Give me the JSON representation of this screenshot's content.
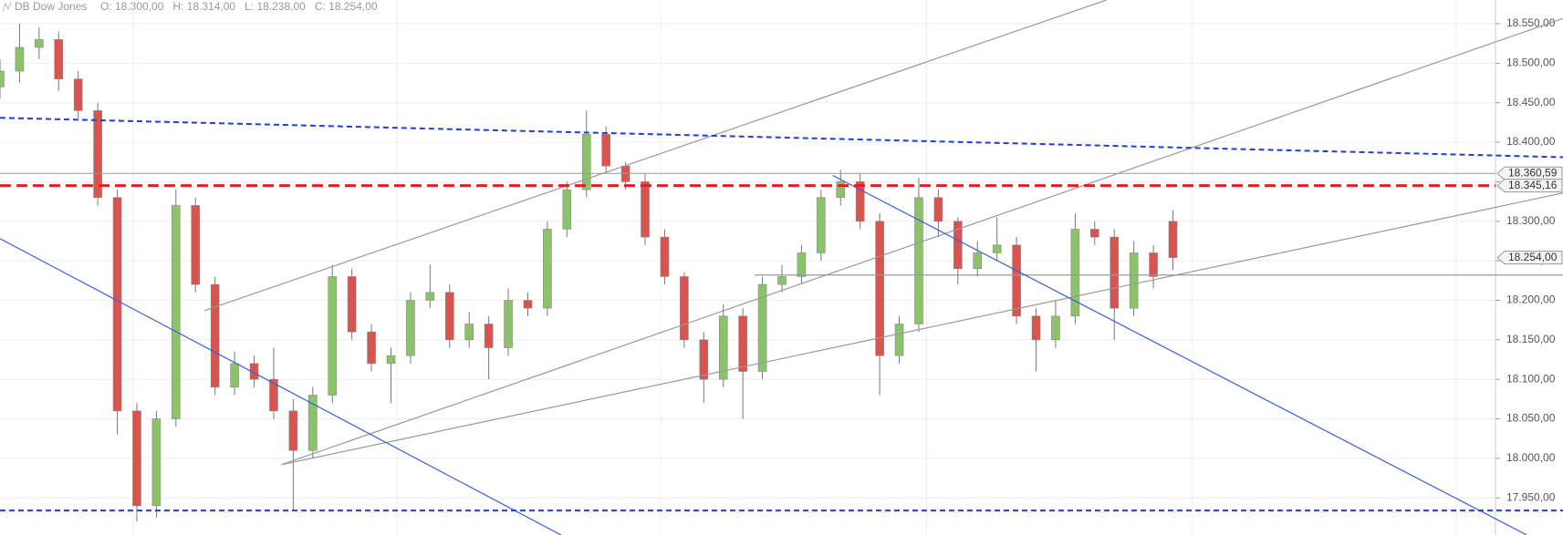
{
  "chart_data": {
    "type": "candlestick",
    "title": "DB Dow Jones",
    "ohlc_labels": [
      "O: 18.300,00",
      "H: 18.314,00",
      "L: 18.238,00",
      "C: 18.254,00"
    ],
    "up_color": "#8cc26a",
    "down_color": "#d9534f",
    "grid": true,
    "xlim": [
      0,
      76.5
    ],
    "xticks": [
      6.8,
      20.3,
      33.8,
      47.4,
      61,
      74.5
    ],
    "ylim": [
      17903,
      18580
    ],
    "yticks": [
      {
        "value": 17950,
        "label": "17.950,00"
      },
      {
        "value": 18000,
        "label": "18.000,00"
      },
      {
        "value": 18050,
        "label": "18.050,00"
      },
      {
        "value": 18100,
        "label": "18.100,00"
      },
      {
        "value": 18150,
        "label": "18.150,00"
      },
      {
        "value": 18200,
        "label": "18.200,00"
      },
      {
        "value": 18250,
        "label": "18.250,00"
      },
      {
        "value": 18300,
        "label": "18.300,00"
      },
      {
        "value": 18350,
        "label": "18.350,00"
      },
      {
        "value": 18400,
        "label": "18.400,00"
      },
      {
        "value": 18450,
        "label": "18.450,00"
      },
      {
        "value": 18500,
        "label": "18.500,00"
      },
      {
        "value": 18550,
        "label": "18.550,00"
      }
    ],
    "open": [
      18470,
      18490,
      18520,
      18530,
      18480,
      18440,
      18330,
      18060,
      17940,
      18050,
      18320,
      18220,
      18090,
      18120,
      18100,
      18060,
      18010,
      18080,
      18230,
      18160,
      18120,
      18130,
      18200,
      18210,
      18150,
      18170,
      18140,
      18200,
      18190,
      18290,
      18340,
      18410,
      18370,
      18350,
      18280,
      18230,
      18150,
      18100,
      18180,
      18110,
      18220,
      18230,
      18260,
      18330,
      18350,
      18300,
      18130,
      18170,
      18330,
      18300,
      18240,
      18260,
      18270,
      18180,
      18150,
      18180,
      18290,
      18280,
      18190,
      18260,
      18300
    ],
    "high": [
      18505,
      18550,
      18545,
      18540,
      18490,
      18450,
      18340,
      18070,
      18060,
      18340,
      18330,
      18230,
      18135,
      18130,
      18140,
      18075,
      18090,
      18245,
      18240,
      18170,
      18140,
      18210,
      18245,
      18220,
      18185,
      18180,
      18215,
      18210,
      18300,
      18350,
      18440,
      18420,
      18375,
      18360,
      18290,
      18235,
      18160,
      18195,
      18190,
      18230,
      18245,
      18270,
      18340,
      18365,
      18360,
      18310,
      18180,
      18355,
      18340,
      18305,
      18275,
      18305,
      18280,
      18190,
      18200,
      18310,
      18300,
      18290,
      18275,
      18270,
      18314
    ],
    "low": [
      18455,
      18475,
      18505,
      18465,
      18430,
      18320,
      18030,
      17920,
      17925,
      18040,
      18210,
      18080,
      18080,
      18090,
      18050,
      17935,
      18000,
      18070,
      18150,
      18110,
      18070,
      18120,
      18190,
      18140,
      18140,
      18100,
      18130,
      18180,
      18180,
      18280,
      18330,
      18360,
      18340,
      18270,
      18220,
      18140,
      18070,
      18090,
      18050,
      18100,
      18210,
      18220,
      18250,
      18320,
      18290,
      18080,
      18120,
      18160,
      18280,
      18220,
      18230,
      18250,
      18170,
      18110,
      18140,
      18170,
      18270,
      18150,
      18180,
      18215,
      18238
    ],
    "close": [
      18490,
      18520,
      18530,
      18480,
      18440,
      18330,
      18060,
      17940,
      18050,
      18320,
      18220,
      18090,
      18120,
      18100,
      18060,
      18010,
      18080,
      18230,
      18160,
      18120,
      18130,
      18200,
      18210,
      18150,
      18170,
      18140,
      18200,
      18190,
      18290,
      18340,
      18410,
      18370,
      18350,
      18280,
      18230,
      18150,
      18100,
      18180,
      18110,
      18220,
      18230,
      18260,
      18330,
      18350,
      18300,
      18130,
      18170,
      18330,
      18300,
      18240,
      18260,
      18270,
      18180,
      18150,
      18180,
      18290,
      18280,
      18190,
      18260,
      18230,
      18254
    ],
    "lines": [
      {
        "x": [
          10.46,
          56.6
        ],
        "y": [
          18187,
          18580
        ],
        "color": "#999999",
        "dash": false
      },
      {
        "x": [
          14.4,
          80
        ],
        "y": [
          17992,
          18557
        ],
        "color": "#999999",
        "dash": false
      },
      {
        "x": [
          14.4,
          80
        ],
        "y": [
          17992,
          18336
        ],
        "color": "#999999",
        "dash": false
      },
      {
        "x": [
          38.6,
          80
        ],
        "y": [
          18232,
          18232
        ],
        "color": "#999999",
        "dash": false
      },
      {
        "x": [
          0,
          28.7
        ],
        "y": [
          18278,
          17903
        ],
        "color": "#3a5fd9",
        "dash": false
      },
      {
        "x": [
          42.6,
          78.1
        ],
        "y": [
          18358,
          17903
        ],
        "color": "#3a5fd9",
        "dash": false
      },
      {
        "x": [
          0,
          80
        ],
        "y": [
          18431,
          18381
        ],
        "color": "#2040d0",
        "dash": true
      },
      {
        "x": [
          0,
          80
        ],
        "y": [
          17934,
          17934
        ],
        "color": "#2040d0",
        "dash": true
      }
    ],
    "levels": [
      {
        "value": 18360.59,
        "label": "18.360,59",
        "color": "#999999",
        "style": "solid"
      },
      {
        "value": 18345.16,
        "label": "18.345,16",
        "color": "#e32020",
        "style": "dashed"
      },
      {
        "value": 18254,
        "label": "18.254,00",
        "color": "#999999",
        "style": "none"
      }
    ]
  }
}
